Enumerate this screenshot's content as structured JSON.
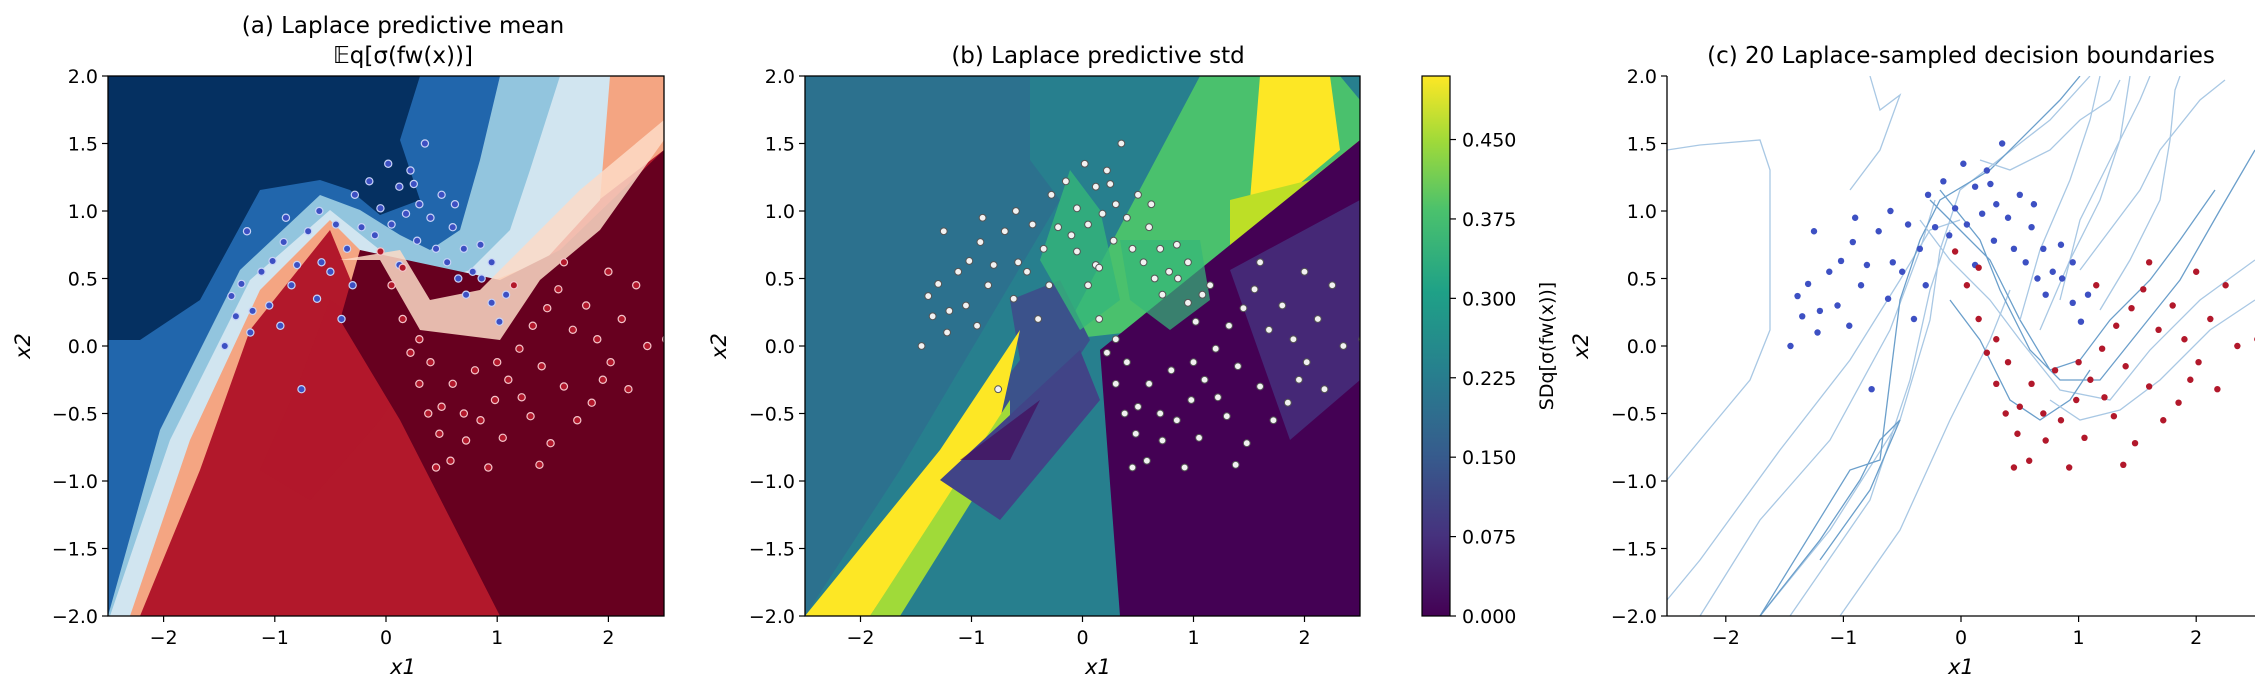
{
  "colors": {
    "class0": "#3d50c3",
    "class1": "#b2182b",
    "boundary_line": "#6b9fcb",
    "boundary_faint": "#a9c8e4",
    "std_point_fill": "#f2f2f2",
    "std_point_edge": "#555555"
  },
  "chart_data": [
    {
      "type": "heatmap",
      "title": "(a) Laplace predictive mean",
      "subtitle": "𝔼q[σ(fw(x))]",
      "xlabel": "x1",
      "ylabel": "x2",
      "xlim": [
        -2.5,
        2.5
      ],
      "ylim": [
        -2.0,
        2.0
      ],
      "xticks": [
        "−2",
        "−1",
        "0",
        "1",
        "2"
      ],
      "yticks": [
        "−2.0",
        "−1.5",
        "−1.0",
        "−0.5",
        "0.0",
        "0.5",
        "1.0",
        "1.5",
        "2.0"
      ],
      "colormap": "RdBu_r",
      "grid": false,
      "overlay": "two-moons training points (blue class 0, red class 1)"
    },
    {
      "type": "heatmap",
      "title": "(b) Laplace predictive std",
      "xlabel": "x1",
      "ylabel": "x2",
      "xlim": [
        -2.5,
        2.5
      ],
      "ylim": [
        -2.0,
        2.0
      ],
      "xticks": [
        "−2",
        "−1",
        "0",
        "1",
        "2"
      ],
      "yticks": [
        "−2.0",
        "−1.5",
        "−1.0",
        "−0.5",
        "0.0",
        "0.5",
        "1.0",
        "1.5",
        "2.0"
      ],
      "colormap": "viridis",
      "colorbar": {
        "label": "SDq[σ(fw(x))]",
        "ticks": [
          "0.000",
          "0.075",
          "0.150",
          "0.225",
          "0.300",
          "0.375",
          "0.450"
        ],
        "range": [
          0.0,
          0.51
        ]
      },
      "grid": false,
      "overlay": "two-moons training points (light grey)"
    },
    {
      "type": "scatter",
      "title": "(c) 20 Laplace-sampled decision boundaries",
      "xlabel": "x1",
      "ylabel": "x2",
      "xlim": [
        -2.5,
        2.5
      ],
      "ylim": [
        -2.0,
        2.0
      ],
      "xticks": [
        "−2",
        "−1",
        "0",
        "1",
        "2"
      ],
      "yticks": [
        "−2.0",
        "−1.5",
        "−1.0",
        "−0.5",
        "0.0",
        "0.5",
        "1.0",
        "1.5",
        "2.0"
      ],
      "boundary_count": 20,
      "grid": false,
      "series": [
        {
          "name": "",
          "class": 0
        },
        {
          "name": "",
          "class": 1
        }
      ]
    }
  ],
  "points": {
    "class0": [
      [
        -1.45,
        0.0
      ],
      [
        -1.39,
        0.37
      ],
      [
        -1.3,
        0.46
      ],
      [
        -1.2,
        0.26
      ],
      [
        -1.12,
        0.55
      ],
      [
        -1.02,
        0.63
      ],
      [
        -0.92,
        0.77
      ],
      [
        -0.8,
        0.6
      ],
      [
        -0.7,
        0.85
      ],
      [
        -0.58,
        0.62
      ],
      [
        -0.45,
        0.9
      ],
      [
        -0.35,
        0.72
      ],
      [
        -0.28,
        1.12
      ],
      [
        -0.15,
        1.22
      ],
      [
        -0.05,
        1.02
      ],
      [
        0.02,
        1.35
      ],
      [
        0.12,
        1.18
      ],
      [
        0.22,
        1.3
      ],
      [
        0.3,
        1.05
      ],
      [
        0.4,
        0.95
      ],
      [
        0.5,
        1.12
      ],
      [
        0.6,
        0.88
      ],
      [
        0.7,
        0.72
      ],
      [
        0.78,
        0.55
      ],
      [
        0.86,
        0.5
      ],
      [
        0.95,
        0.32
      ],
      [
        1.02,
        0.18
      ],
      [
        1.08,
        0.38
      ],
      [
        -1.05,
        0.3
      ],
      [
        -0.95,
        0.15
      ],
      [
        -0.85,
        0.45
      ],
      [
        -0.62,
        0.35
      ],
      [
        -0.5,
        0.55
      ],
      [
        -0.22,
        0.88
      ],
      [
        -0.1,
        0.82
      ],
      [
        0.05,
        0.9
      ],
      [
        0.18,
        0.98
      ],
      [
        0.28,
        0.78
      ],
      [
        0.45,
        0.72
      ],
      [
        0.55,
        0.62
      ],
      [
        0.65,
        0.5
      ],
      [
        0.72,
        0.38
      ],
      [
        -1.22,
        0.1
      ],
      [
        -0.76,
        -0.32
      ],
      [
        -0.3,
        0.45
      ],
      [
        0.12,
        0.6
      ],
      [
        0.35,
        1.5
      ],
      [
        -1.25,
        0.85
      ],
      [
        -0.9,
        0.95
      ],
      [
        -0.6,
        1.0
      ],
      [
        0.25,
        1.2
      ],
      [
        0.62,
        1.05
      ],
      [
        0.85,
        0.75
      ],
      [
        -0.4,
        0.2
      ],
      [
        0.95,
        0.62
      ],
      [
        -1.35,
        0.22
      ]
    ],
    "class1": [
      [
        -0.05,
        0.7
      ],
      [
        0.05,
        0.45
      ],
      [
        0.15,
        0.2
      ],
      [
        0.22,
        -0.05
      ],
      [
        0.3,
        -0.28
      ],
      [
        0.38,
        -0.5
      ],
      [
        0.48,
        -0.65
      ],
      [
        0.58,
        -0.85
      ],
      [
        0.72,
        -0.7
      ],
      [
        0.85,
        -0.55
      ],
      [
        0.98,
        -0.4
      ],
      [
        1.1,
        -0.25
      ],
      [
        1.2,
        -0.02
      ],
      [
        1.32,
        0.15
      ],
      [
        1.45,
        0.28
      ],
      [
        1.55,
        0.42
      ],
      [
        1.68,
        0.12
      ],
      [
        1.8,
        0.3
      ],
      [
        1.9,
        0.05
      ],
      [
        2.02,
        -0.12
      ],
      [
        2.12,
        0.2
      ],
      [
        2.25,
        0.45
      ],
      [
        2.35,
        0.0
      ],
      [
        2.52,
        0.05
      ],
      [
        1.6,
        -0.3
      ],
      [
        1.72,
        -0.55
      ],
      [
        1.48,
        -0.72
      ],
      [
        1.3,
        -0.52
      ],
      [
        1.05,
        -0.68
      ],
      [
        0.92,
        -0.9
      ],
      [
        0.4,
        -0.12
      ],
      [
        0.6,
        -0.28
      ],
      [
        0.8,
        -0.18
      ],
      [
        1.0,
        -0.12
      ],
      [
        1.22,
        -0.38
      ],
      [
        1.4,
        -0.15
      ],
      [
        0.15,
        0.58
      ],
      [
        0.3,
        0.05
      ],
      [
        0.5,
        -0.45
      ],
      [
        1.85,
        -0.42
      ],
      [
        2.0,
        0.55
      ],
      [
        1.95,
        -0.25
      ],
      [
        2.18,
        -0.32
      ],
      [
        0.7,
        -0.5
      ],
      [
        1.15,
        0.45
      ],
      [
        1.6,
        0.62
      ],
      [
        0.45,
        -0.9
      ],
      [
        1.38,
        -0.88
      ]
    ]
  }
}
